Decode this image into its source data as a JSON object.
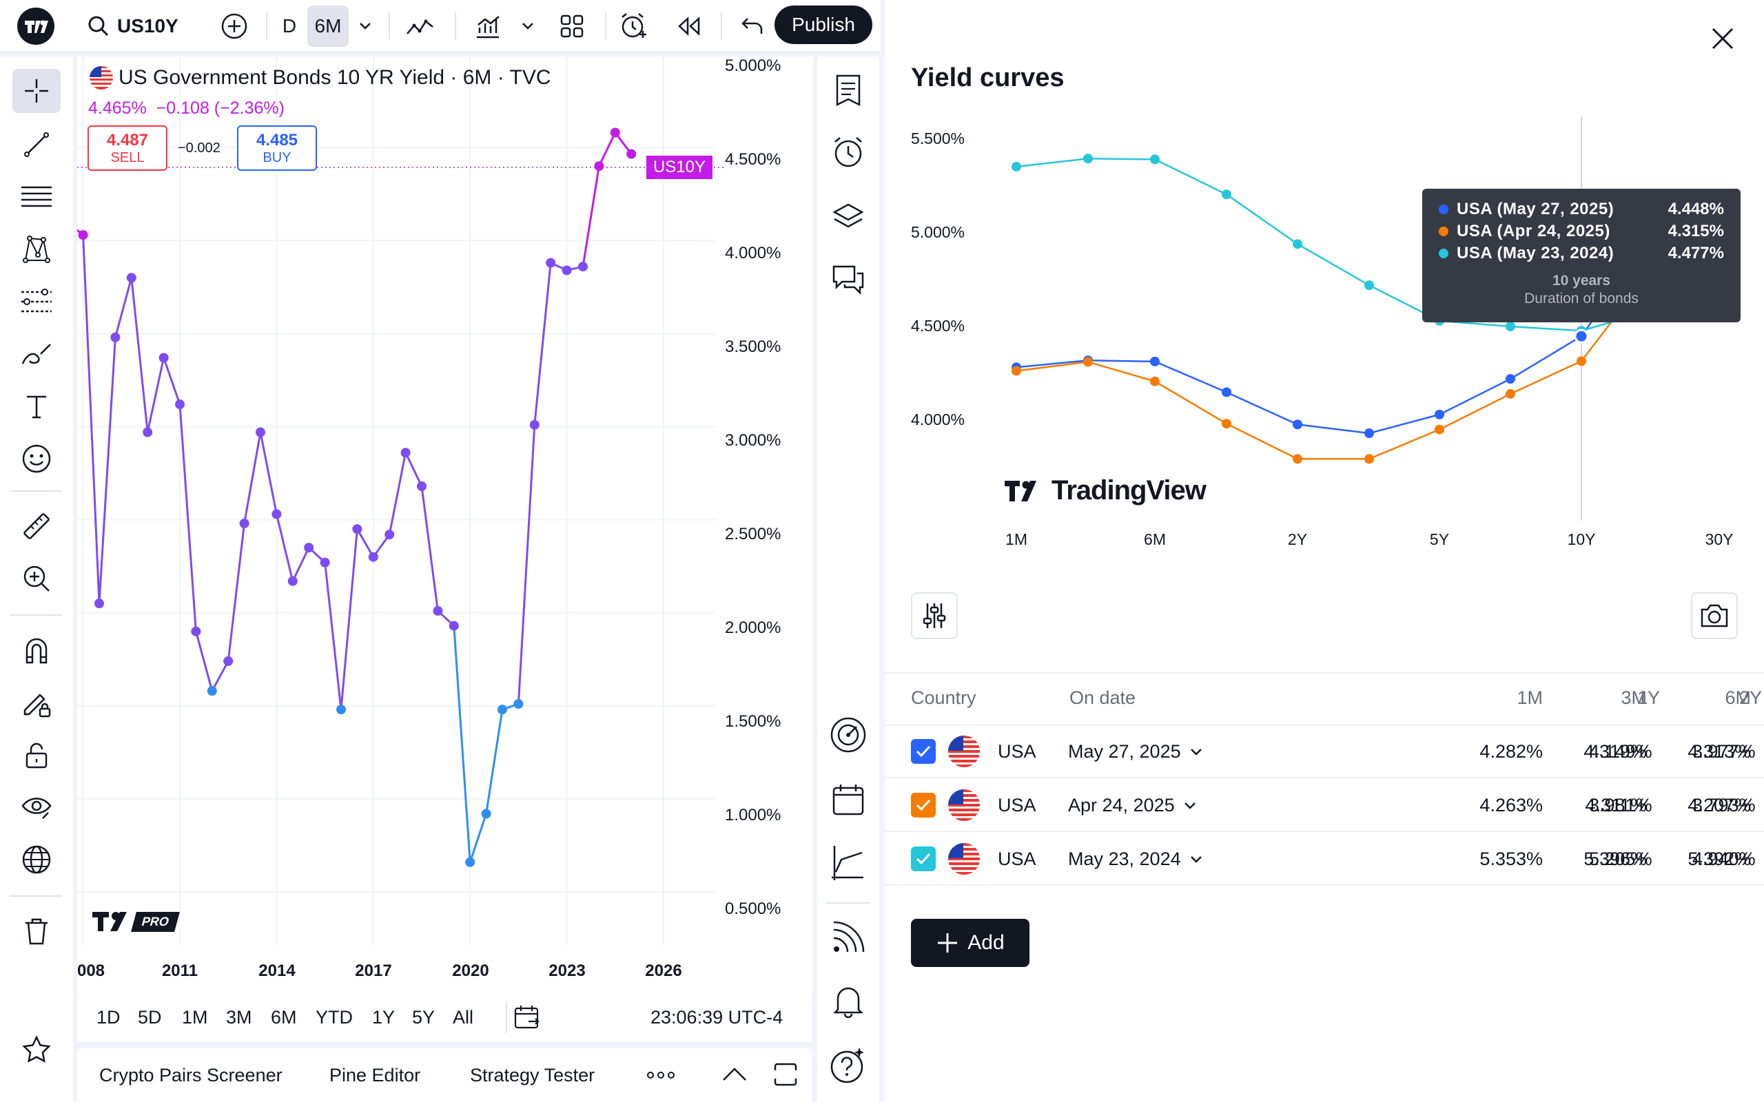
{
  "topbar": {
    "symbol": "US10Y",
    "interval_d": "D",
    "interval_6m": "6M",
    "publish_label": "Publish"
  },
  "chart": {
    "title": "US Government Bonds 10 YR Yield · 6M · TVC",
    "change_line": "4.465%  −0.108 (−2.36%)",
    "sell_price": "4.487",
    "sell_label": "SELL",
    "spread": "−0.002",
    "buy_price": "4.485",
    "buy_label": "BUY",
    "price_tag": "US10Y",
    "pro_badge": "PRO",
    "colors": {
      "upper": "#c21ce6",
      "mid": "#7d4cf0",
      "lower": "#2f8ef0",
      "sell": "#f23645",
      "buy": "#2962ff"
    }
  },
  "chart_data": {
    "type": "line",
    "series_name": "US10Y",
    "x": [
      "2007-07",
      "2008-01",
      "2008-07",
      "2009-01",
      "2009-07",
      "2010-01",
      "2010-07",
      "2011-01",
      "2011-07",
      "2012-01",
      "2012-07",
      "2013-01",
      "2013-07",
      "2014-01",
      "2014-07",
      "2015-01",
      "2015-07",
      "2016-01",
      "2016-07",
      "2017-01",
      "2017-07",
      "2018-01",
      "2018-07",
      "2019-01",
      "2019-07",
      "2020-01",
      "2020-07",
      "2021-01",
      "2021-07",
      "2022-01",
      "2022-07",
      "2023-01",
      "2023-07",
      "2024-01",
      "2024-07",
      "2025-01"
    ],
    "y": [
      4.1,
      4.03,
      2.05,
      3.48,
      3.8,
      2.97,
      3.37,
      3.12,
      1.9,
      1.58,
      1.74,
      2.48,
      2.97,
      2.53,
      2.17,
      2.35,
      2.27,
      1.48,
      2.45,
      2.3,
      2.42,
      2.86,
      2.68,
      2.01,
      1.93,
      0.66,
      0.92,
      1.48,
      1.51,
      3.01,
      3.88,
      3.84,
      3.86,
      4.4,
      4.58,
      4.465
    ],
    "x_ticks": [
      "008",
      "2011",
      "2014",
      "2017",
      "2020",
      "2023",
      "2026"
    ],
    "y_ticks": [
      "5.000%",
      "4.500%",
      "4.000%",
      "3.500%",
      "3.000%",
      "2.500%",
      "2.000%",
      "1.500%",
      "1.000%",
      "0.500%"
    ],
    "ylim": [
      0.4,
      5.0
    ]
  },
  "range_bar": {
    "ranges": [
      "1D",
      "5D",
      "1M",
      "3M",
      "6M",
      "YTD",
      "1Y",
      "5Y",
      "All"
    ],
    "clock": "23:06:39 UTC-4"
  },
  "bottom_tabs": [
    "Crypto Pairs Screener",
    "Pine Editor",
    "Strategy Tester"
  ],
  "yield_panel": {
    "title": "Yield curves",
    "watermark": "TradingView",
    "add_label": "Add",
    "columns": {
      "country": "Country",
      "date": "On date",
      "m1": "1M",
      "m3": "3M",
      "m6": "6M",
      "y1": "1Y",
      "y2": "2Y"
    },
    "rows": [
      {
        "country": "USA",
        "date": "May 27, 2025",
        "m1": "4.282%",
        "m3": "4.319%",
        "m6": "4.313%",
        "y1": "4.149%",
        "y2": "3.977%",
        "color": "#2962ff"
      },
      {
        "country": "USA",
        "date": "Apr 24, 2025",
        "m1": "4.263%",
        "m3": "4.311%",
        "m6": "4.207%",
        "y1": "3.981%",
        "y2": "3.793%",
        "color": "#f57c00"
      },
      {
        "country": "USA",
        "date": "May 23, 2024",
        "m1": "5.353%",
        "m3": "5.396%",
        "m6": "5.392%",
        "y1": "5.205%",
        "y2": "4.940%",
        "color": "#26c6da"
      }
    ],
    "tooltip": {
      "lines": [
        {
          "label": "USA (May 27, 2025)",
          "value": "4.448%",
          "color": "#2962ff"
        },
        {
          "label": "USA (Apr 24, 2025)",
          "value": "4.315%",
          "color": "#f57c00"
        },
        {
          "label": "USA (May 23, 2024)",
          "value": "4.477%",
          "color": "#26c6da"
        }
      ],
      "title": "10 years",
      "subtitle": "Duration of bonds"
    },
    "chart_data": {
      "type": "line",
      "x_ticks": [
        "1M",
        "6M",
        "2Y",
        "5Y",
        "10Y",
        "30Y"
      ],
      "y_ticks": [
        "5.500%",
        "5.000%",
        "4.500%",
        "4.000%"
      ],
      "ylim": [
        3.8,
        5.55
      ],
      "maturities": [
        "1M",
        "3M",
        "6M",
        "1Y",
        "2Y",
        "3Y",
        "5Y",
        "7Y",
        "10Y",
        "20Y",
        "30Y"
      ],
      "series": [
        {
          "name": "USA (May 27, 2025)",
          "color": "#2962ff",
          "values": [
            4.282,
            4.319,
            4.313,
            4.149,
            3.977,
            3.93,
            4.03,
            4.22,
            4.448,
            4.95,
            4.96
          ]
        },
        {
          "name": "USA (Apr 24, 2025)",
          "color": "#f57c00",
          "values": [
            4.263,
            4.311,
            4.207,
            3.981,
            3.793,
            3.793,
            3.95,
            4.14,
            4.315,
            4.78,
            4.79
          ]
        },
        {
          "name": "USA (May 23, 2024)",
          "color": "#26c6da",
          "values": [
            5.353,
            5.396,
            5.392,
            5.205,
            4.94,
            4.72,
            4.53,
            4.5,
            4.477,
            4.58,
            4.59
          ]
        }
      ]
    }
  }
}
